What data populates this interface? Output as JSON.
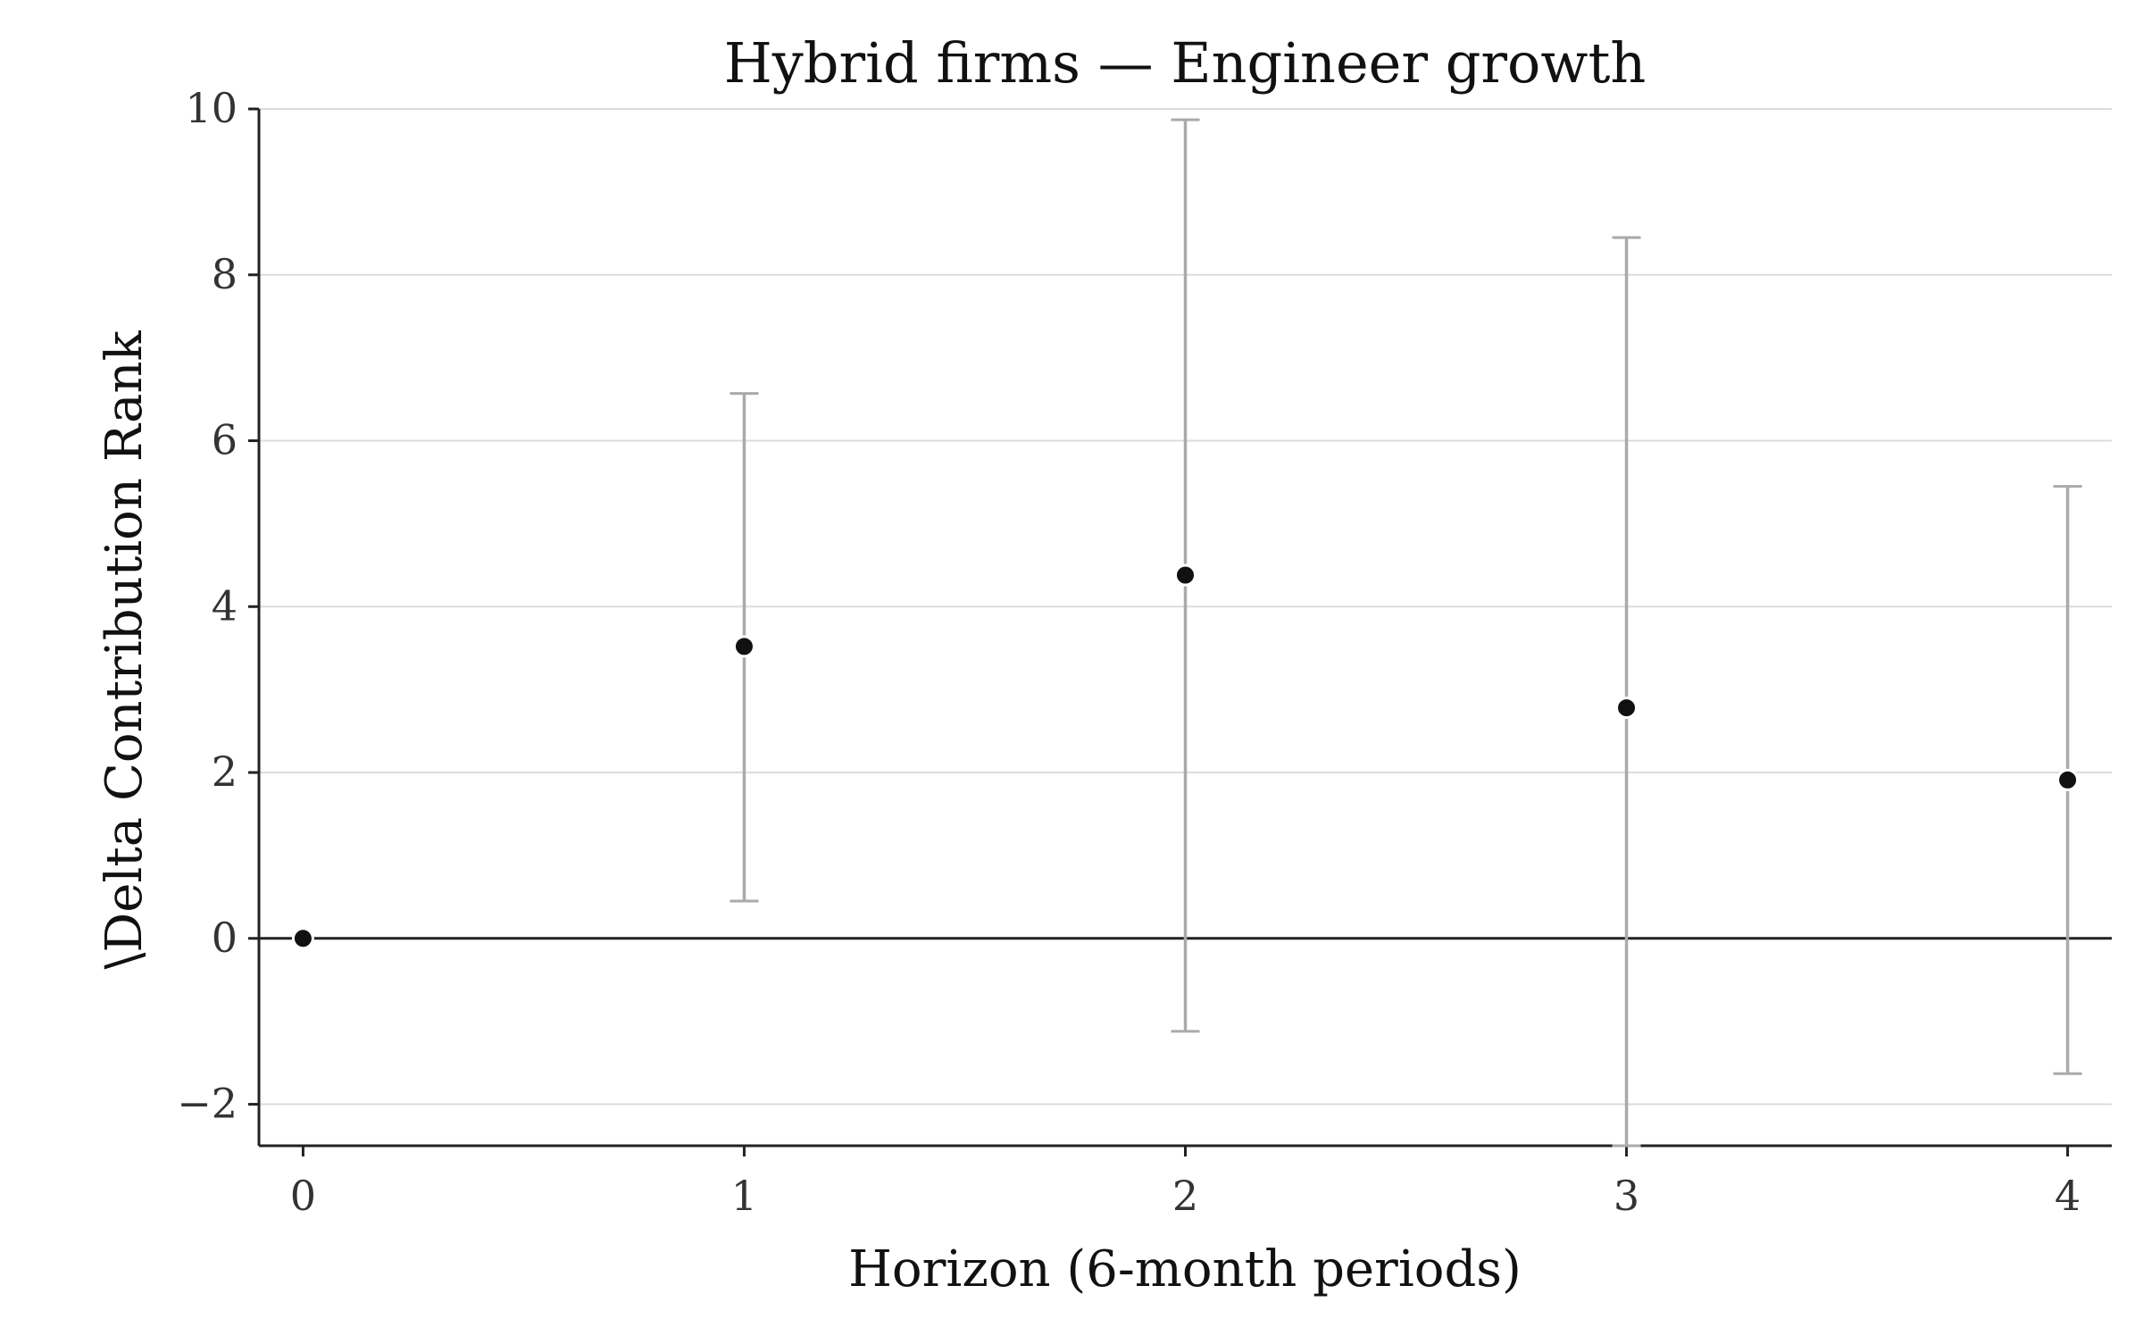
{
  "chart_data": {
    "type": "scatter",
    "title": "Hybrid firms — Engineer growth",
    "xlabel": "Horizon (6-month periods)",
    "ylabel": "\\Delta Contribution Rank",
    "x": [
      0,
      1,
      2,
      3,
      4
    ],
    "series": [
      {
        "values": [
          0,
          3.52,
          4.38,
          2.78,
          1.91
        ],
        "ci_low": [
          0,
          0.45,
          -1.12,
          -2.5,
          -1.63
        ],
        "ci_high": [
          0,
          6.57,
          9.87,
          8.45,
          5.45
        ]
      }
    ],
    "xticks": [
      "0",
      "1",
      "2",
      "3",
      "4"
    ],
    "yticks": [
      "−2",
      "0",
      "2",
      "4",
      "6",
      "8",
      "10"
    ],
    "ytick_values": [
      -2,
      0,
      2,
      4,
      6,
      8,
      10
    ],
    "xlim": [
      -0.1,
      4.1
    ],
    "ylim": [
      -2.5,
      10
    ],
    "reference_line_y": 0,
    "grid": "horizontal",
    "legend": "none",
    "colors": {
      "point": "#111111",
      "errorbar": "#aaaaaa",
      "grid": "#dcdcdc",
      "axis": "#222222"
    }
  }
}
